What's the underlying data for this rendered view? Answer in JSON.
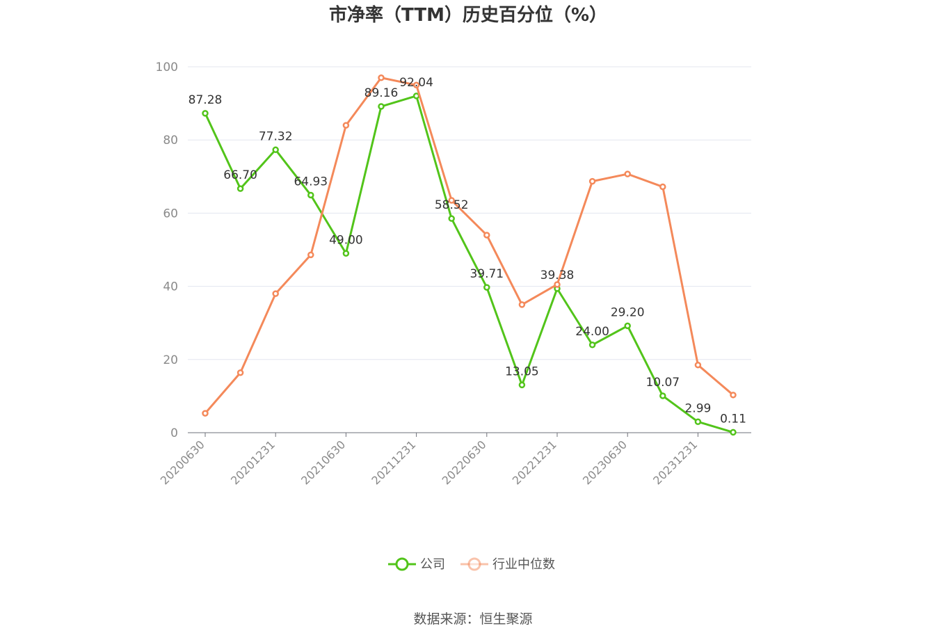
{
  "chart_data": {
    "type": "line",
    "title": "市净率（TTM）历史百分位（%）",
    "ylim": [
      0,
      100
    ],
    "yticks": [
      0,
      20,
      40,
      60,
      80,
      100
    ],
    "grid": true,
    "legend_position": "bottom-center",
    "x": [
      "20200630",
      "20200930",
      "20201231",
      "20210331",
      "20210630",
      "20210930",
      "20211231",
      "20220331",
      "20220630",
      "20220930",
      "20221231",
      "20230331",
      "20230630",
      "20230930",
      "20231231",
      "20240331"
    ],
    "xtick_labels": [
      "20200630",
      "20201231",
      "20210630",
      "20211231",
      "20220630",
      "20221231",
      "20230630",
      "20231231"
    ],
    "series": [
      {
        "name": "公司",
        "color": "#52c41a",
        "values": [
          87.28,
          66.7,
          77.32,
          64.93,
          49.0,
          89.16,
          92.04,
          58.52,
          39.71,
          13.05,
          39.38,
          24.0,
          29.2,
          10.07,
          2.99,
          0.11
        ],
        "labels": [
          "87.28",
          "66.70",
          "77.32",
          "64.93",
          "49.00",
          "89.16",
          "92.04",
          "58.52",
          "39.71",
          "13.05",
          "39.38",
          "24.00",
          "29.20",
          "10.07",
          "2.99",
          "0.11"
        ]
      },
      {
        "name": "行业中位数",
        "color": "#f4895a",
        "values": [
          5.3,
          16.4,
          38.0,
          48.6,
          84.0,
          97.0,
          95.0,
          63.5,
          54.0,
          35.0,
          40.5,
          68.7,
          70.7,
          67.2,
          18.5,
          10.3
        ]
      }
    ]
  },
  "source": "数据来源：恒生聚源"
}
